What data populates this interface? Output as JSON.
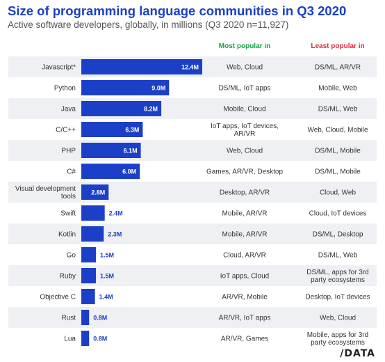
{
  "header": {
    "title": "Size of programming language communities in Q3 2020",
    "subtitle": "Active software developers, globally, in millions (Q3 2020 n=11,927)",
    "most_popular_label": "Most popular in",
    "least_popular_label": "Least popular in"
  },
  "colors": {
    "bar": "#1c3fc8",
    "band": "#eef0f4",
    "most_popular_header": "#17a34a",
    "least_popular_header": "#e0283b",
    "text": "#333333"
  },
  "chart_data": {
    "type": "bar",
    "orientation": "horizontal",
    "unit": "M",
    "categories": [
      "Javascript*",
      "Python",
      "Java",
      "C/C++",
      "PHP",
      "C#",
      "Visual development tools",
      "Swift",
      "Kotlin",
      "Go",
      "Ruby",
      "Objective C",
      "Rust",
      "Lua"
    ],
    "values": [
      12.4,
      9.0,
      8.2,
      6.3,
      6.1,
      6.0,
      2.8,
      2.4,
      2.3,
      1.5,
      1.5,
      1.4,
      0.8,
      0.8
    ],
    "value_labels": [
      "12.4M",
      "9.0M",
      "8.2M",
      "6.3M",
      "6.1M",
      "6.0M",
      "2.8M",
      "2.4M",
      "2.3M",
      "1.5M",
      "1.5M",
      "1.4M",
      "0.8M",
      "0.8M"
    ],
    "most_popular_in": [
      "Web, Cloud",
      "DS/ML, IoT apps",
      "Mobile, Cloud",
      "IoT apps, IoT devices, AR/VR",
      "Web, Cloud",
      "Games, AR/VR, Desktop",
      "Desktop, AR/VR",
      "Mobile, AR/VR",
      "Mobile, AR/VR",
      "Cloud, AR/VR",
      "IoT apps, Cloud",
      "AR/VR, Mobile",
      "AR/VR, IoT apps",
      "AR/VR, Games"
    ],
    "least_popular_in": [
      "DS/ML, AR/VR",
      "Mobile, Web",
      "DS/ML, Web",
      "Web, Cloud, Mobile",
      "DS/ML, Mobile",
      "DS/ML, Mobile",
      "Cloud, Web",
      "Cloud, IoT devices",
      "DS/ML, Desktop",
      "DS/ML, Web",
      "DS/ML, apps for 3rd party ecosystems",
      "Desktop, IoT devices",
      "Web, Cloud",
      "Mobile, apps for 3rd party ecosystems"
    ],
    "xlim": [
      0,
      12.4
    ],
    "grid": false
  },
  "footer": {
    "logo_text": "/DATA"
  }
}
